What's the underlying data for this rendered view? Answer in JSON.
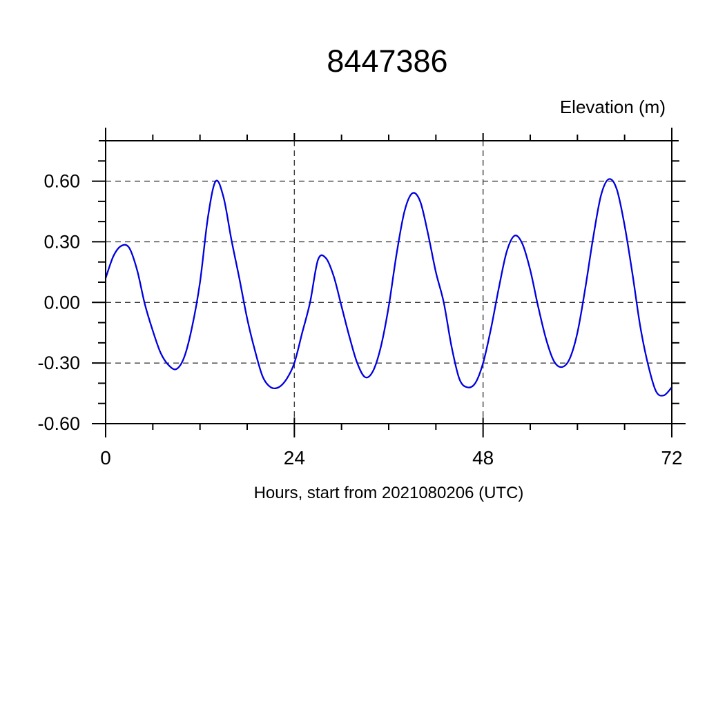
{
  "chart_data": {
    "type": "line",
    "title": "8447386",
    "ylabel_right": "Elevation (m)",
    "xlabel": "Hours, start from 2021080206 (UTC)",
    "xlim": [
      0,
      72
    ],
    "ylim": [
      -0.6,
      0.8
    ],
    "xticks": [
      {
        "value": 0,
        "label": "0"
      },
      {
        "value": 24,
        "label": "24"
      },
      {
        "value": 48,
        "label": "48"
      },
      {
        "value": 72,
        "label": "72"
      }
    ],
    "yticks": [
      {
        "value": 0.6,
        "label": "0.60"
      },
      {
        "value": 0.3,
        "label": "0.30"
      },
      {
        "value": 0.0,
        "label": "0.00"
      },
      {
        "value": -0.3,
        "label": "-0.30"
      },
      {
        "value": -0.6,
        "label": "-0.60"
      }
    ],
    "x_minor_step": 6,
    "y_minor_step": 0.1,
    "grid_on": true,
    "grid_style": "dashed",
    "grid_x_values": [
      24,
      48
    ],
    "grid_y_values": [
      0.6,
      0.3,
      0.0,
      -0.3
    ],
    "legend": "none",
    "axis_color": "#000000",
    "grid_color": "#3c3c3c",
    "background_color": "#ffffff",
    "series": [
      {
        "name": "tide-elevation",
        "color": "#0000e0",
        "x_hours": [
          0,
          1,
          2,
          3,
          4,
          5,
          6,
          7,
          8,
          9,
          10,
          11,
          12,
          13,
          14,
          15,
          16,
          17,
          18,
          19,
          20,
          21,
          22,
          23,
          24,
          25,
          26,
          27,
          28,
          29,
          30,
          31,
          32,
          33,
          34,
          35,
          36,
          37,
          38,
          39,
          40,
          41,
          42,
          43,
          44,
          45,
          46,
          47,
          48,
          49,
          50,
          51,
          52,
          53,
          54,
          55,
          56,
          57,
          58,
          59,
          60,
          61,
          62,
          63,
          64,
          65,
          66,
          67,
          68,
          69,
          70,
          71,
          72
        ],
        "values": [
          0.12,
          0.23,
          0.28,
          0.27,
          0.16,
          -0.01,
          -0.14,
          -0.25,
          -0.31,
          -0.33,
          -0.27,
          -0.12,
          0.1,
          0.42,
          0.6,
          0.52,
          0.31,
          0.12,
          -0.08,
          -0.24,
          -0.37,
          -0.42,
          -0.42,
          -0.38,
          -0.3,
          -0.15,
          0.0,
          0.21,
          0.22,
          0.13,
          -0.02,
          -0.17,
          -0.3,
          -0.37,
          -0.34,
          -0.22,
          -0.02,
          0.24,
          0.45,
          0.54,
          0.5,
          0.34,
          0.15,
          0.0,
          -0.22,
          -0.38,
          -0.42,
          -0.4,
          -0.3,
          -0.13,
          0.07,
          0.25,
          0.33,
          0.29,
          0.16,
          -0.02,
          -0.18,
          -0.29,
          -0.32,
          -0.28,
          -0.15,
          0.07,
          0.32,
          0.53,
          0.61,
          0.56,
          0.38,
          0.14,
          -0.12,
          -0.31,
          -0.44,
          -0.46,
          -0.42
        ]
      }
    ]
  }
}
